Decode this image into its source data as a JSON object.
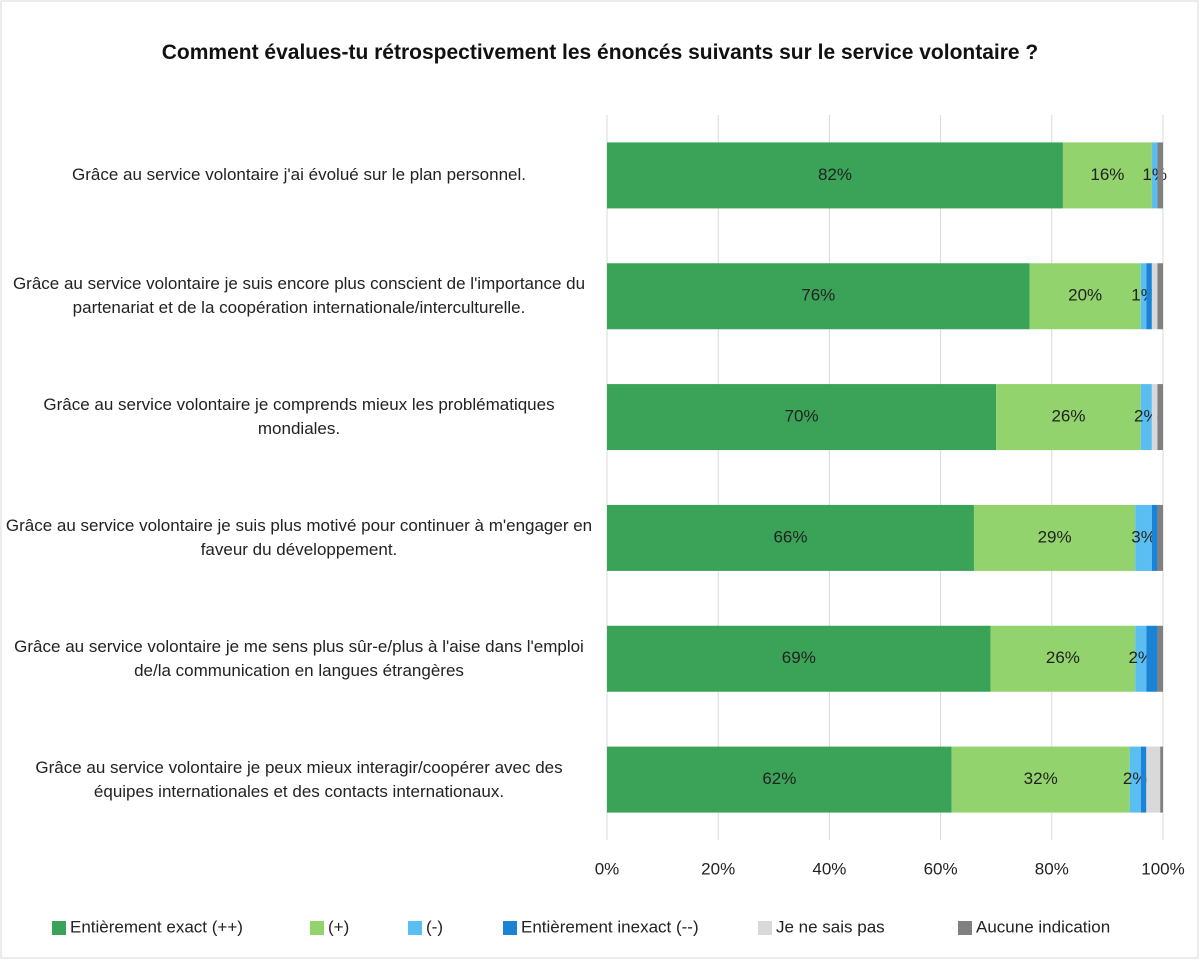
{
  "chart_data": {
    "type": "stacked_bar_horizontal",
    "title": "Comment évalues-tu rétrospectivement les énoncés suivants sur le service volontaire ?",
    "categories": [
      "Grâce au service volontaire j'ai évolué sur le plan personnel.",
      "Grâce au service volontaire je suis encore plus conscient de l'importance du partenariat et de la coopération internationale/interculturelle.",
      "Grâce au service volontaire je comprends mieux les problématiques mondiales.",
      "Grâce au service volontaire je suis plus motivé pour continuer à m'engager en faveur du développement.",
      "Grâce au service volontaire je me sens plus sûr-e/plus à l'aise dans l'emploi de/la communication en langues étrangères",
      "Grâce au service volontaire je peux mieux interagir/coopérer avec des équipes internationales et des contacts internationaux."
    ],
    "series": [
      {
        "name": "Entièrement exact (++)",
        "color": "#3ba357",
        "values": [
          82,
          76,
          70,
          66,
          69,
          62
        ],
        "value_labels": [
          "82%",
          "76%",
          "70%",
          "66%",
          "69%",
          "62%"
        ]
      },
      {
        "name": "(+)",
        "color": "#93d36d",
        "values": [
          16,
          20,
          26,
          29,
          26,
          32
        ],
        "value_labels": [
          "16%",
          "20%",
          "26%",
          "29%",
          "26%",
          "32%"
        ]
      },
      {
        "name": "(-)",
        "color": "#5bbef2",
        "values": [
          1,
          1,
          2,
          3,
          2,
          2
        ],
        "value_labels": [
          "1%",
          "1%",
          "2%",
          "3%",
          "2%",
          "2%"
        ]
      },
      {
        "name": "Entièrement inexact (--)",
        "color": "#1a83d6",
        "values": [
          0,
          1,
          0,
          1,
          2,
          1
        ]
      },
      {
        "name": "Je ne sais pas",
        "color": "#d9d9d9",
        "values": [
          0,
          1,
          1,
          0,
          0,
          2.5
        ]
      },
      {
        "name": "Aucune indication",
        "color": "#808080",
        "values": [
          1,
          1,
          1,
          1,
          1,
          0.5
        ]
      }
    ],
    "xlim": [
      0,
      100
    ],
    "xticks": [
      {
        "value": 0,
        "label": "0%"
      },
      {
        "value": 20,
        "label": "20%"
      },
      {
        "value": 40,
        "label": "40%"
      },
      {
        "value": 60,
        "label": "60%"
      },
      {
        "value": 80,
        "label": "80%"
      },
      {
        "value": 100,
        "label": "100%"
      }
    ],
    "grid": true,
    "legend": "bottom"
  }
}
